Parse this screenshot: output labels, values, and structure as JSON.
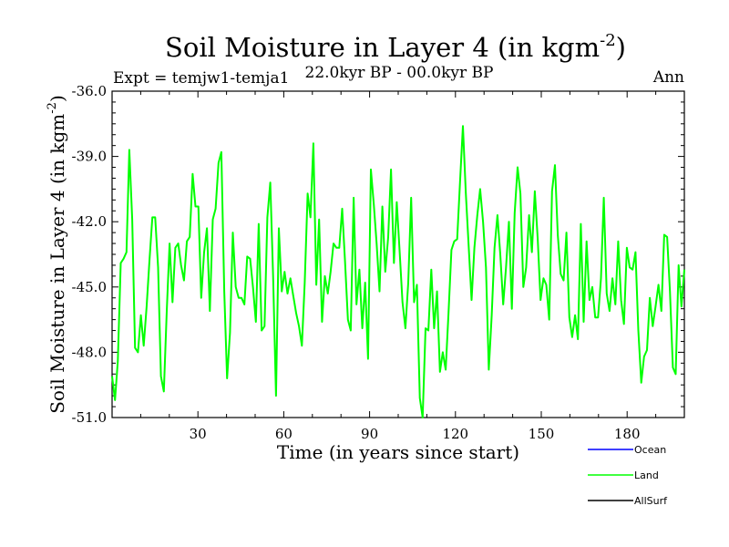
{
  "chart_data": {
    "type": "line",
    "title": "Soil Moisture in Layer 4 (in kgm",
    "title_sup": "-2",
    "title_end": ")",
    "subtitle_left": "Expt = temjw1-temja1",
    "subtitle_center": "22.0kyr BP - 00.0kyr BP",
    "subtitle_right": "Ann",
    "xlabel": "Time (in years since start)",
    "ylabel": "Soil Moisture in Layer 4 (in kgm",
    "ylabel_sup": "-2",
    "ylabel_end": ")",
    "xlim": [
      0,
      200
    ],
    "ylim": [
      -51.0,
      -36.0
    ],
    "xticks": [
      30,
      60,
      90,
      120,
      150,
      180
    ],
    "yticks": [
      -36.0,
      -39.0,
      -42.0,
      -45.0,
      -48.0,
      -51.0
    ],
    "ytick_labels": [
      "-36.0",
      "-39.0",
      "-42.0",
      "-45.0",
      "-48.0",
      "-51.0"
    ],
    "legend_position": "bottom-right",
    "series": [
      {
        "name": "Ocean",
        "color": "#0000ff",
        "values": []
      },
      {
        "name": "Land",
        "color": "#00ff00",
        "values": [
          -49.1,
          -50.2,
          -48.4,
          -43.9,
          -43.7,
          -43.4,
          -38.7,
          -41.9,
          -47.8,
          -48.0,
          -46.3,
          -47.7,
          -45.9,
          -43.8,
          -41.8,
          -41.8,
          -44.1,
          -49.1,
          -49.8,
          -46.1,
          -43.0,
          -45.7,
          -43.2,
          -43.0,
          -44.0,
          -44.7,
          -42.9,
          -42.7,
          -39.8,
          -41.3,
          -41.3,
          -45.5,
          -43.4,
          -42.3,
          -46.1,
          -41.9,
          -41.4,
          -39.3,
          -38.8,
          -45.2,
          -49.2,
          -47.1,
          -42.5,
          -45.0,
          -45.5,
          -45.5,
          -45.8,
          -43.6,
          -43.7,
          -45.0,
          -46.6,
          -42.1,
          -47.0,
          -46.8,
          -41.8,
          -40.2,
          -44.5,
          -50.0,
          -42.3,
          -45.2,
          -44.3,
          -45.3,
          -44.6,
          -45.4,
          -46.2,
          -46.8,
          -47.7,
          -44.8,
          -40.7,
          -41.8,
          -38.4,
          -44.9,
          -41.9,
          -46.6,
          -44.5,
          -45.3,
          -44.3,
          -43.0,
          -43.2,
          -43.2,
          -41.4,
          -43.8,
          -46.5,
          -47.0,
          -40.9,
          -45.8,
          -44.2,
          -46.9,
          -44.8,
          -48.3,
          -39.6,
          -41.2,
          -43.0,
          -45.2,
          -41.3,
          -44.3,
          -42.7,
          -39.6,
          -43.9,
          -41.1,
          -43.4,
          -45.7,
          -46.9,
          -44.8,
          -40.9,
          -45.7,
          -44.9,
          -50.1,
          -51.0,
          -46.9,
          -47.0,
          -44.2,
          -46.9,
          -45.2,
          -48.9,
          -48.0,
          -48.8,
          -46.2,
          -43.3,
          -42.9,
          -42.8,
          -40.2,
          -37.6,
          -40.7,
          -43.1,
          -45.6,
          -43.2,
          -41.7,
          -40.5,
          -42.0,
          -44.1,
          -48.8,
          -46.3,
          -43.2,
          -41.7,
          -43.5,
          -45.8,
          -44.1,
          -42.0,
          -46.0,
          -41.6,
          -39.5,
          -40.7,
          -45.0,
          -44.1,
          -41.7,
          -43.4,
          -40.6,
          -42.8,
          -45.6,
          -44.6,
          -44.9,
          -46.5,
          -40.6,
          -39.4,
          -42.6,
          -44.4,
          -44.7,
          -42.5,
          -46.4,
          -47.3,
          -46.3,
          -47.4,
          -42.1,
          -46.6,
          -42.9,
          -45.6,
          -45.0,
          -46.4,
          -46.4,
          -44.6,
          -40.9,
          -45.3,
          -46.1,
          -44.6,
          -45.8,
          -42.9,
          -45.6,
          -46.7,
          -43.2,
          -44.1,
          -44.2,
          -43.4,
          -47.0,
          -49.4,
          -48.2,
          -47.9,
          -45.5,
          -46.8,
          -45.9,
          -44.9,
          -46.1,
          -42.6,
          -42.7,
          -45.2,
          -48.7,
          -49.0,
          -44.0,
          -45.9,
          -44.2
        ]
      },
      {
        "name": "AllSurf",
        "color": "#000000",
        "values": []
      }
    ]
  }
}
